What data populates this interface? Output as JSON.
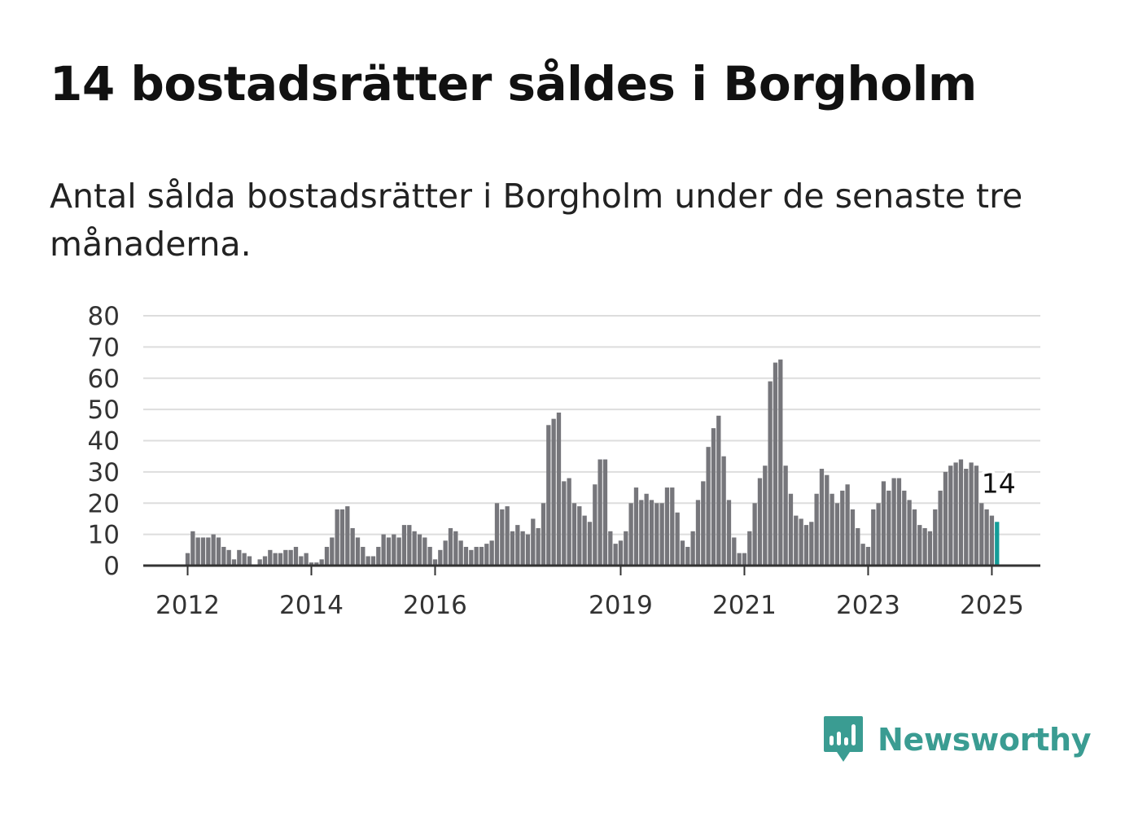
{
  "title": "14 bostadsrätter såldes i Borgholm",
  "subtitle": "Antal sålda bostadsrätter i Borgholm under de senaste tre månaderna.",
  "logo": {
    "text": "Newsworthy",
    "icon": "newsworthy-bar-chart-icon"
  },
  "colors": {
    "bar": "#76767b",
    "highlight": "#139c98",
    "grid": "#dddddd",
    "axis": "#333333",
    "brand": "#3a9c92"
  },
  "chart_data": {
    "type": "bar",
    "title": "",
    "xlabel": "",
    "ylabel": "",
    "ylim": [
      0,
      80
    ],
    "yticks": [
      0,
      10,
      20,
      30,
      40,
      50,
      60,
      70,
      80
    ],
    "grid": true,
    "x_tick_labels": [
      "2012",
      "2014",
      "2016",
      "2019",
      "2021",
      "2023",
      "2025"
    ],
    "start": "2012-01",
    "frequency": "monthly",
    "series": [
      {
        "values": [
          4,
          11,
          9,
          9,
          9,
          10,
          9,
          6,
          5,
          2,
          5,
          4,
          3,
          0,
          2,
          3,
          5,
          4,
          4,
          5,
          5,
          6,
          3,
          4,
          1,
          1,
          2,
          6,
          9,
          18,
          18,
          19,
          12,
          9,
          6,
          3,
          3,
          6,
          10,
          9,
          10,
          9,
          13,
          13,
          11,
          10,
          9,
          6,
          2,
          5,
          8,
          12,
          11,
          8,
          6,
          5,
          6,
          6,
          7,
          8,
          20,
          18,
          19,
          11,
          13,
          11,
          10,
          15,
          12,
          20,
          45,
          47,
          49,
          27,
          28,
          20,
          19,
          16,
          14,
          26,
          34,
          34,
          11,
          7,
          8,
          11,
          20,
          25,
          21,
          23,
          21,
          20,
          20,
          25,
          25,
          17,
          8,
          6,
          11,
          21,
          27,
          38,
          44,
          48,
          35,
          21,
          9,
          4,
          4,
          11,
          20,
          28,
          32,
          59,
          65,
          66,
          32,
          23,
          16,
          15,
          13,
          14,
          23,
          31,
          29,
          23,
          20,
          24,
          26,
          18,
          12,
          7,
          6,
          18,
          20,
          27,
          24,
          28,
          28,
          24,
          21,
          18,
          13,
          12,
          11,
          18,
          24,
          30,
          32,
          33,
          34,
          31,
          33,
          32,
          20,
          18,
          16,
          14
        ]
      }
    ],
    "annotation": {
      "label": "14",
      "value": 14
    }
  }
}
